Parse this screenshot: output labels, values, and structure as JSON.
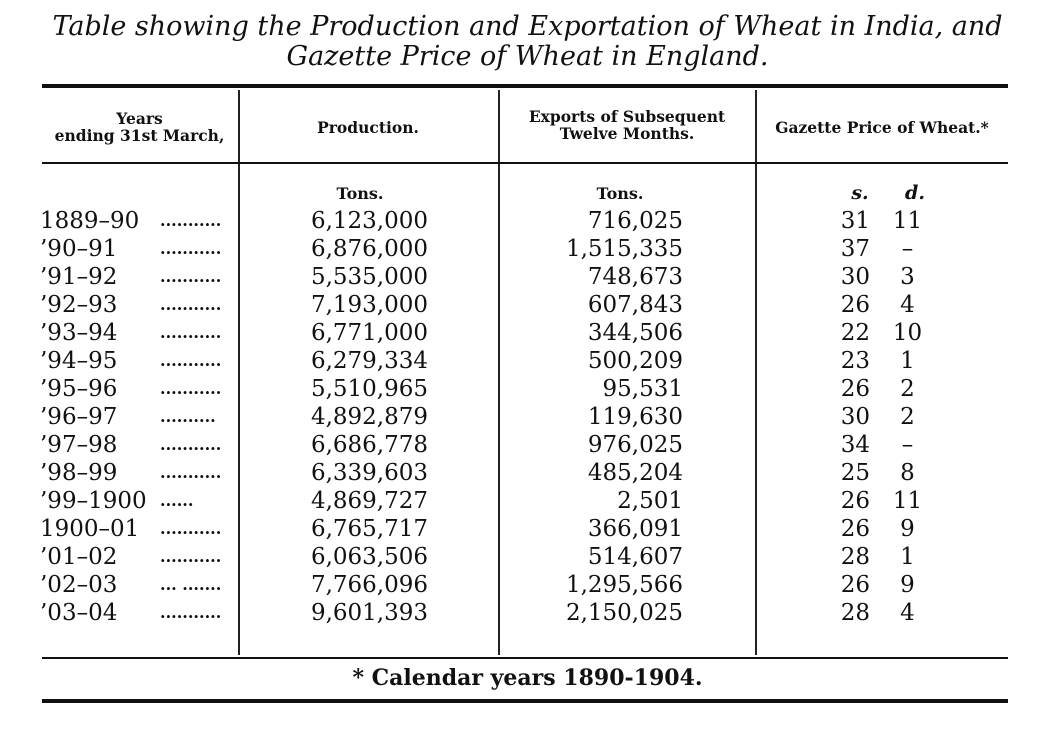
{
  "title": {
    "line1": "Table showing the Production and Exportation of Wheat in India, and",
    "line2": "Gazette Price of Wheat in England."
  },
  "headers": {
    "years_line1": "Years",
    "years_line2": "ending 31st March,",
    "production": "Production.",
    "exports_line1": "Exports of Subsequent",
    "exports_line2": "Twelve Months.",
    "price": "Gazette Price of Wheat.*"
  },
  "units": {
    "production": "Tons.",
    "exports": "Tons.",
    "shillings": "s.",
    "pence": "d."
  },
  "rows": [
    {
      "year": "1889–90",
      "dots": "...........",
      "production": "6,123,000",
      "exports": "716,025",
      "s": "31",
      "d": "11"
    },
    {
      "year": "’90–91",
      "dots": "...........",
      "production": "6,876,000",
      "exports": "1,515,335",
      "s": "37",
      "d": "–"
    },
    {
      "year": "’91–92",
      "dots": "...........",
      "production": "5,535,000",
      "exports": "748,673",
      "s": "30",
      "d": "3"
    },
    {
      "year": "’92–93",
      "dots": "...........",
      "production": "7,193,000",
      "exports": "607,843",
      "s": "26",
      "d": "4"
    },
    {
      "year": "’93–94",
      "dots": "...........",
      "production": "6,771,000",
      "exports": "344,506",
      "s": "22",
      "d": "10"
    },
    {
      "year": "’94–95",
      "dots": "...........",
      "production": "6,279,334",
      "exports": "500,209",
      "s": "23",
      "d": "1"
    },
    {
      "year": "’95–96",
      "dots": "...........",
      "production": "5,510,965",
      "exports": "95,531",
      "s": "26",
      "d": "2"
    },
    {
      "year": "’96–97",
      "dots": "..........",
      "production": "4,892,879",
      "exports": "119,630",
      "s": "30",
      "d": "2"
    },
    {
      "year": "’97–98",
      "dots": "...........",
      "production": "6,686,778",
      "exports": "976,025",
      "s": "34",
      "d": "–"
    },
    {
      "year": "’98–99",
      "dots": "...........",
      "production": "6,339,603",
      "exports": "485,204",
      "s": "25",
      "d": "8"
    },
    {
      "year": "’99–1900",
      "dots": "......",
      "production": "4,869,727",
      "exports": "2,501",
      "s": "26",
      "d": "11"
    },
    {
      "year": "1900–01",
      "dots": "...........",
      "production": "6,765,717",
      "exports": "366,091",
      "s": "26",
      "d": "9"
    },
    {
      "year": "’01–02",
      "dots": "...........",
      "production": "6,063,506",
      "exports": "514,607",
      "s": "28",
      "d": "1"
    },
    {
      "year": "’02–03",
      "dots": "... .......",
      "production": "7,766,096",
      "exports": "1,295,566",
      "s": "26",
      "d": "9"
    },
    {
      "year": "’03–04",
      "dots": "...........",
      "production": "9,601,393",
      "exports": "2,150,025",
      "s": "28",
      "d": "4"
    }
  ],
  "footnote": "* Calendar years 1890-1904."
}
